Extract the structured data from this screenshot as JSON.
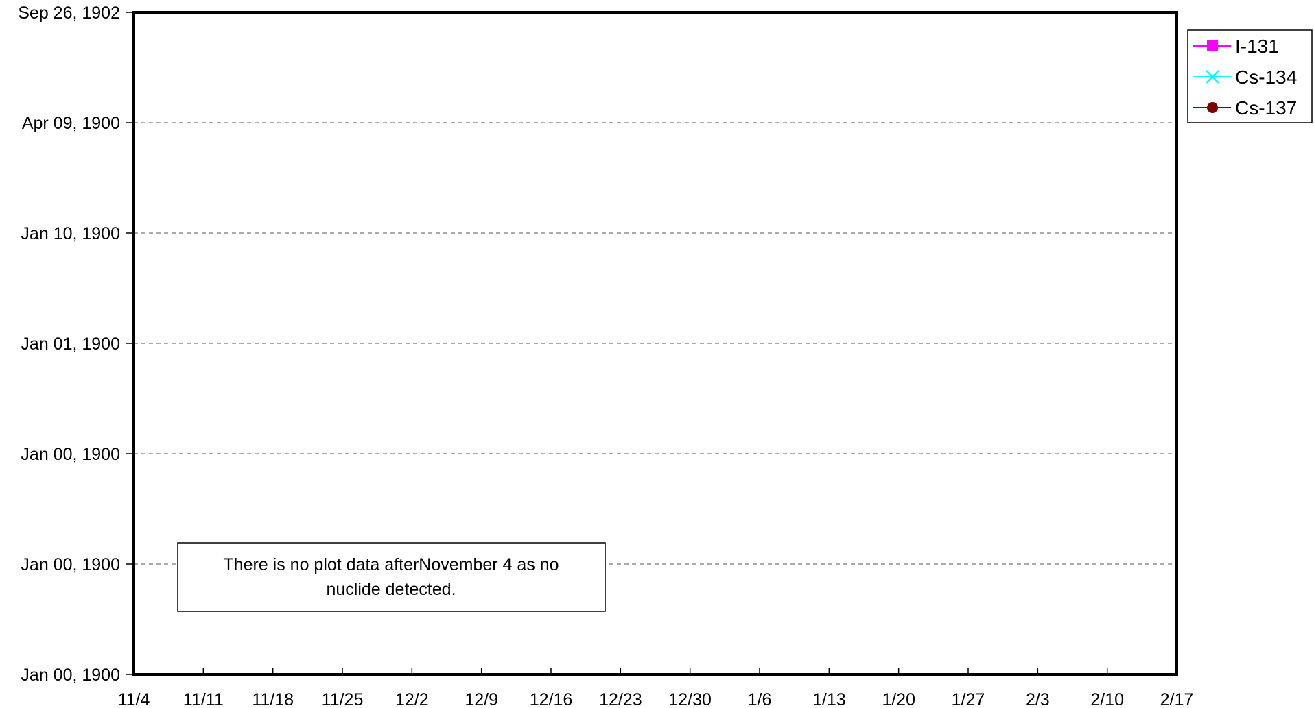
{
  "chart_data": {
    "type": "line",
    "title": "",
    "xlabel": "",
    "ylabel": "",
    "x_tick_labels": [
      "11/4",
      "11/11",
      "11/18",
      "11/25",
      "12/2",
      "12/9",
      "12/16",
      "12/23",
      "12/30",
      "1/6",
      "1/13",
      "1/20",
      "1/27",
      "2/3",
      "2/10",
      "2/17"
    ],
    "y_tick_labels": [
      "Jan 00, 1900",
      "Jan 00, 1900",
      "Jan 00, 1900",
      "Jan 01, 1900",
      "Jan 10, 1900",
      "Apr 09, 1900",
      "Sep 26, 1902"
    ],
    "grid": "horizontal dashed",
    "legend_position": "right",
    "series": [
      {
        "name": "I-131",
        "color": "#ff00ff",
        "marker": "square",
        "values": []
      },
      {
        "name": "Cs-134",
        "color": "#00ffff",
        "marker": "x",
        "values": []
      },
      {
        "name": "Cs-137",
        "color": "#800000",
        "marker": "circle",
        "values": []
      }
    ],
    "annotation": {
      "lines": [
        "There is no plot data afterNovember 4 as no",
        "nuclide detected."
      ]
    }
  }
}
